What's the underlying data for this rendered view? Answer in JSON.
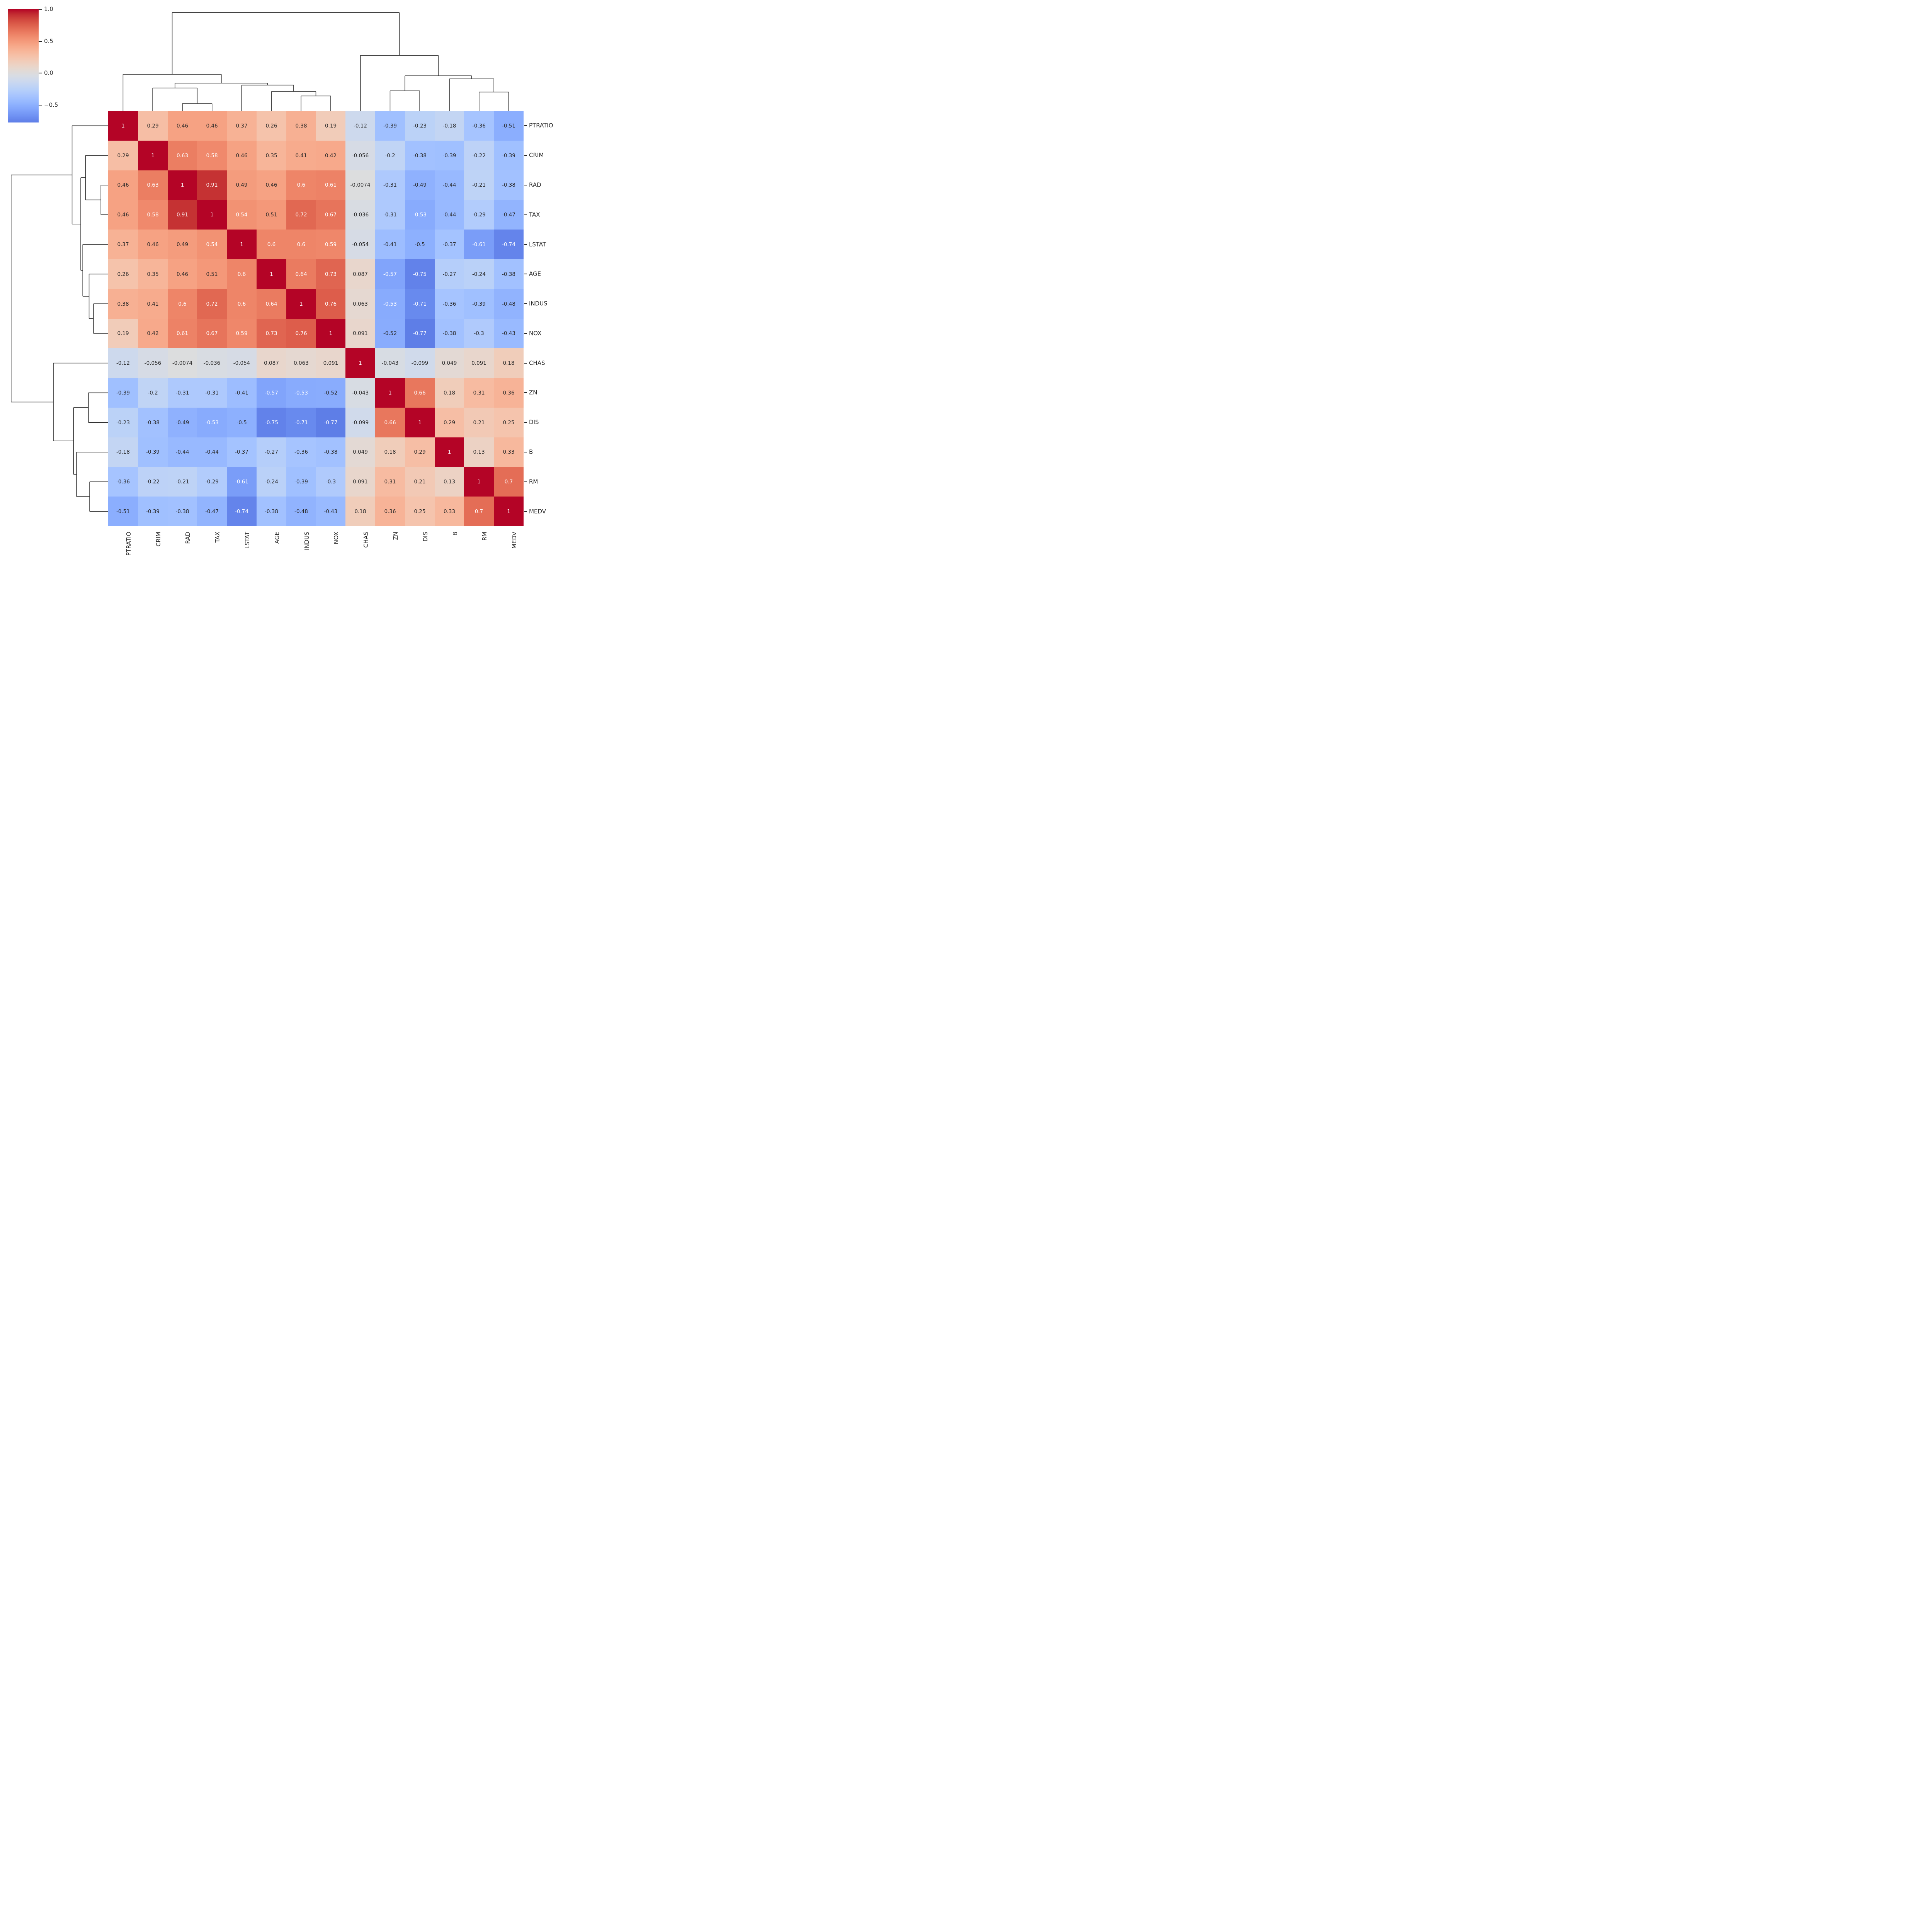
{
  "chart_data": {
    "type": "heatmap",
    "subtype": "clustermap-with-dendrograms",
    "title": "",
    "labels": [
      "PTRATIO",
      "CRIM",
      "RAD",
      "TAX",
      "LSTAT",
      "AGE",
      "INDUS",
      "NOX",
      "CHAS",
      "ZN",
      "DIS",
      "B",
      "RM",
      "MEDV"
    ],
    "matrix": [
      [
        1,
        0.29,
        0.46,
        0.46,
        0.37,
        0.26,
        0.38,
        0.19,
        -0.12,
        -0.39,
        -0.23,
        -0.18,
        -0.36,
        -0.51
      ],
      [
        0.29,
        1,
        0.63,
        0.58,
        0.46,
        0.35,
        0.41,
        0.42,
        -0.056,
        -0.2,
        -0.38,
        -0.39,
        -0.22,
        -0.39
      ],
      [
        0.46,
        0.63,
        1,
        0.91,
        0.49,
        0.46,
        0.6,
        0.61,
        -0.0074,
        -0.31,
        -0.49,
        -0.44,
        -0.21,
        -0.38
      ],
      [
        0.46,
        0.58,
        0.91,
        1,
        0.54,
        0.51,
        0.72,
        0.67,
        -0.036,
        -0.31,
        -0.53,
        -0.44,
        -0.29,
        -0.47
      ],
      [
        0.37,
        0.46,
        0.49,
        0.54,
        1,
        0.6,
        0.6,
        0.59,
        -0.054,
        -0.41,
        -0.5,
        -0.37,
        -0.61,
        -0.74
      ],
      [
        0.26,
        0.35,
        0.46,
        0.51,
        0.6,
        1,
        0.64,
        0.73,
        0.087,
        -0.57,
        -0.75,
        -0.27,
        -0.24,
        -0.38
      ],
      [
        0.38,
        0.41,
        0.6,
        0.72,
        0.6,
        0.64,
        1,
        0.76,
        0.063,
        -0.53,
        -0.71,
        -0.36,
        -0.39,
        -0.48
      ],
      [
        0.19,
        0.42,
        0.61,
        0.67,
        0.59,
        0.73,
        0.76,
        1,
        0.091,
        -0.52,
        -0.77,
        -0.38,
        -0.3,
        -0.43
      ],
      [
        -0.12,
        -0.056,
        -0.0074,
        -0.036,
        -0.054,
        0.087,
        0.063,
        0.091,
        1,
        -0.043,
        -0.099,
        0.049,
        0.091,
        0.18
      ],
      [
        -0.39,
        -0.2,
        -0.31,
        -0.31,
        -0.41,
        -0.57,
        -0.53,
        -0.52,
        -0.043,
        1,
        0.66,
        0.18,
        0.31,
        0.36
      ],
      [
        -0.23,
        -0.38,
        -0.49,
        -0.53,
        -0.5,
        -0.75,
        -0.71,
        -0.77,
        -0.099,
        0.66,
        1,
        0.29,
        0.21,
        0.25
      ],
      [
        -0.18,
        -0.39,
        -0.44,
        -0.44,
        -0.37,
        -0.27,
        -0.36,
        -0.38,
        0.049,
        0.18,
        0.29,
        1,
        0.13,
        0.33
      ],
      [
        -0.36,
        -0.22,
        -0.21,
        -0.29,
        -0.61,
        -0.24,
        -0.39,
        -0.3,
        0.091,
        0.31,
        0.21,
        0.13,
        1,
        0.7
      ],
      [
        -0.51,
        -0.39,
        -0.38,
        -0.47,
        -0.74,
        -0.38,
        -0.48,
        -0.43,
        0.18,
        0.36,
        0.25,
        0.33,
        0.7,
        1
      ]
    ],
    "annotation_format": "2-significant-figures",
    "colormap": "coolwarm",
    "color_norm_range": [
      -1,
      1
    ],
    "colorbar": {
      "value_range_shown": [
        -0.77,
        1.0
      ],
      "tick_values": [
        1.0,
        0.5,
        0.0,
        -0.5
      ],
      "tick_labels": [
        "1.0",
        "0.5",
        "0.0",
        "−0.5"
      ]
    },
    "grid": false,
    "legend_position": "upper-left-colorbar",
    "dendrogram_tree": {
      "h": 1.0,
      "children": [
        {
          "h": 0.372,
          "children": [
            "PTRATIO",
            {
              "h": 0.2825,
              "children": [
                {
                  "h": 0.2333,
                  "children": [
                    "CRIM",
                    {
                      "h": 0.0748,
                      "children": [
                        "RAD",
                        "TAX"
                      ]
                    }
                  ]
                },
                {
                  "h": 0.2618,
                  "children": [
                    "LSTAT",
                    {
                      "h": 0.1969,
                      "children": [
                        "AGE",
                        {
                          "h": 0.1516,
                          "children": [
                            "INDUS",
                            "NOX"
                          ]
                        }
                      ]
                    }
                  ]
                }
              ]
            }
          ]
        },
        {
          "h": 0.565,
          "children": [
            "CHAS",
            {
              "h": 0.357,
              "children": [
                {
                  "h": 0.2037,
                  "children": [
                    "ZN",
                    "DIS"
                  ]
                },
                {
                  "h": 0.3258,
                  "children": [
                    "B",
                    {
                      "h": 0.1909,
                      "children": [
                        "RM",
                        "MEDV"
                      ]
                    }
                  ]
                }
              ]
            }
          ]
        }
      ]
    },
    "style": {
      "annot_dark_text": "#262626",
      "annot_light_text": "#ffffff",
      "dendrogram_line_color": "#2b2b2b",
      "background": "#ffffff"
    }
  }
}
